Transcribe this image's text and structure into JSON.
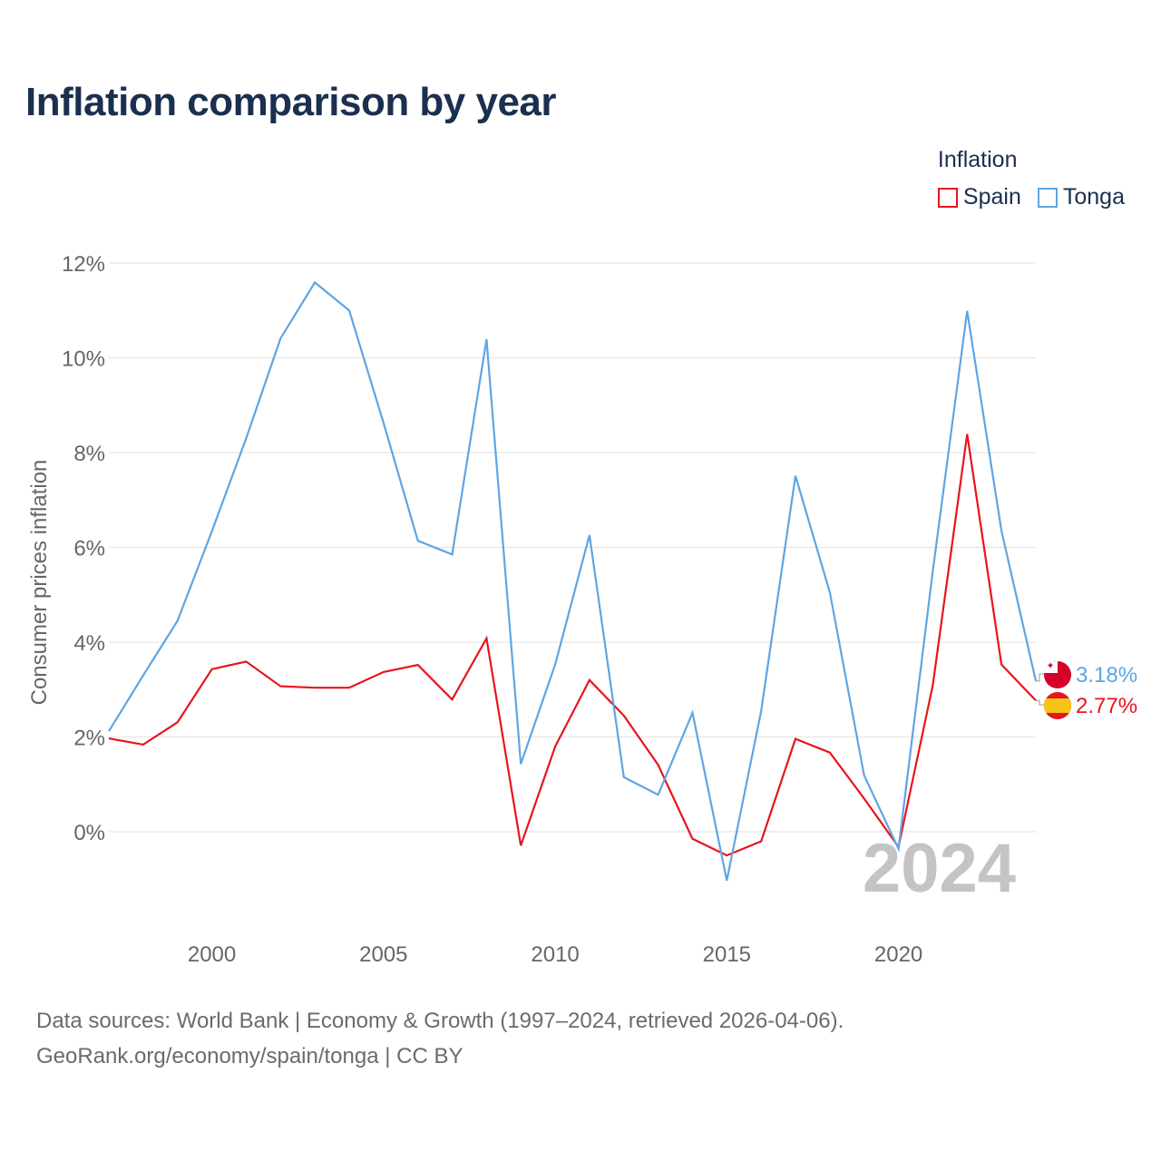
{
  "title": "Inflation comparison by year",
  "legend": {
    "title": "Inflation",
    "items": [
      {
        "label": "Spain",
        "color": "#e8141c"
      },
      {
        "label": "Tonga",
        "color": "#5ea5e3"
      }
    ]
  },
  "source": {
    "line1": "Data sources: World Bank | Economy & Growth (1997–2024, retrieved 2026-04-06).",
    "line2": "GeoRank.org/economy/spain/tonga | CC BY"
  },
  "chart_data": {
    "type": "line",
    "title": "Inflation comparison by year",
    "xlabel": "",
    "ylabel": "Consumer prices inflation",
    "xlim": [
      1997,
      2024
    ],
    "ylim": [
      -1.5,
      12
    ],
    "grid": true,
    "year_label": "2024",
    "x_ticks": [
      2000,
      2005,
      2010,
      2015,
      2020
    ],
    "y_ticks": [
      0,
      2,
      4,
      6,
      8,
      10,
      12
    ],
    "y_tick_labels": [
      "0%",
      "2%",
      "4%",
      "6%",
      "8%",
      "10%",
      "12%"
    ],
    "x": [
      1997,
      1998,
      1999,
      2000,
      2001,
      2002,
      2003,
      2004,
      2005,
      2006,
      2007,
      2008,
      2009,
      2010,
      2011,
      2012,
      2013,
      2014,
      2015,
      2016,
      2017,
      2018,
      2019,
      2020,
      2021,
      2022,
      2023,
      2024
    ],
    "series": [
      {
        "name": "Spain",
        "color": "#e8141c",
        "end_label": "2.77%",
        "values": [
          1.97,
          1.84,
          2.31,
          3.43,
          3.59,
          3.07,
          3.04,
          3.04,
          3.37,
          3.52,
          2.79,
          4.08,
          -0.29,
          1.8,
          3.2,
          2.45,
          1.41,
          -0.15,
          -0.5,
          -0.2,
          1.96,
          1.67,
          0.7,
          -0.32,
          3.09,
          8.39,
          3.53,
          2.77
        ]
      },
      {
        "name": "Tonga",
        "color": "#5ea5e3",
        "end_label": "3.18%",
        "values": [
          2.12,
          3.3,
          4.45,
          6.34,
          8.3,
          10.41,
          11.59,
          11.0,
          8.63,
          6.14,
          5.85,
          10.39,
          1.43,
          3.53,
          6.26,
          1.15,
          0.78,
          2.51,
          -1.03,
          2.55,
          7.51,
          5.05,
          1.19,
          -0.36,
          5.5,
          10.99,
          6.35,
          3.18
        ]
      }
    ]
  }
}
